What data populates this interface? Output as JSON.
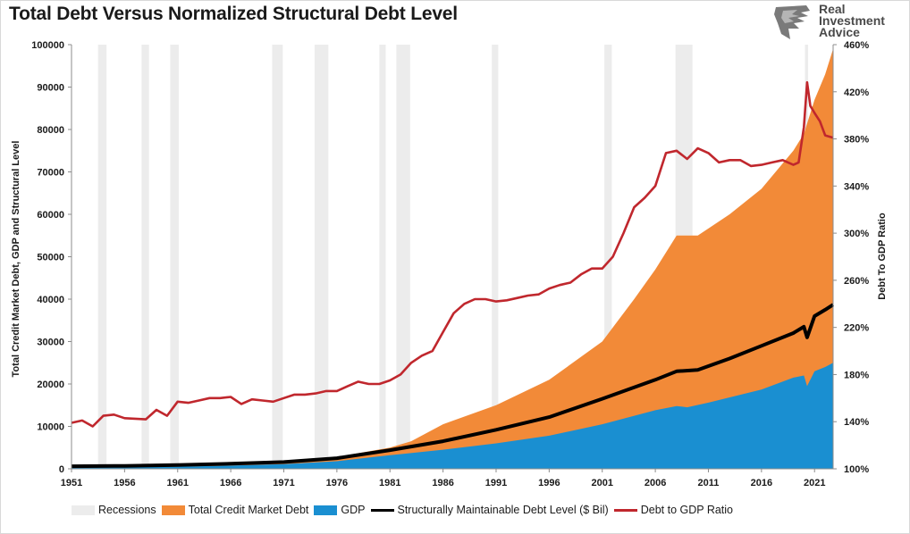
{
  "title": "Total Debt Versus Normalized Structural Debt Level",
  "logo": {
    "line1": "Real",
    "line2": "Investment",
    "line3": "Advice"
  },
  "chart_data": {
    "type": "area",
    "title": "Total Debt Versus Normalized Structural Debt Level",
    "ylabel": "Total Credit Market Debt, GDP and Structural Level",
    "y2label": "Debt To GDP Ratio",
    "xlim": [
      1951,
      2022.75
    ],
    "ylim": [
      0,
      100000
    ],
    "y2lim": [
      100,
      460
    ],
    "x_ticks": [
      "1951",
      "1956",
      "1961",
      "1966",
      "1971",
      "1976",
      "1981",
      "1986",
      "1991",
      "1996",
      "2001",
      "2006",
      "2011",
      "2016",
      "2021"
    ],
    "y_ticks": [
      "0",
      "10000",
      "20000",
      "30000",
      "40000",
      "50000",
      "60000",
      "70000",
      "80000",
      "90000",
      "100000"
    ],
    "y2_ticks": [
      "100%",
      "140%",
      "180%",
      "220%",
      "260%",
      "300%",
      "340%",
      "380%",
      "420%",
      "460%"
    ],
    "recessions": [
      [
        1953.5,
        1954.3
      ],
      [
        1957.6,
        1958.3
      ],
      [
        1960.3,
        1961.1
      ],
      [
        1969.9,
        1970.9
      ],
      [
        1973.9,
        1975.2
      ],
      [
        1980.0,
        1980.6
      ],
      [
        1981.6,
        1982.9
      ],
      [
        1990.6,
        1991.2
      ],
      [
        2001.2,
        2001.9
      ],
      [
        2007.9,
        2009.5
      ],
      [
        2020.1,
        2020.4
      ]
    ],
    "series": [
      {
        "name": "Recessions",
        "color": "#ececec"
      },
      {
        "name": "Total Credit Market Debt",
        "color": "#f28a38",
        "x": [
          1951,
          1956,
          1961,
          1966,
          1971,
          1976,
          1981,
          1983,
          1986,
          1991,
          1996,
          2001,
          2004,
          2006,
          2008,
          2010,
          2013,
          2016,
          2019,
          2020,
          2021,
          2022,
          2022.75
        ],
        "values": [
          400,
          600,
          800,
          1200,
          1700,
          2800,
          5000,
          6500,
          10500,
          15000,
          21000,
          30000,
          40000,
          47000,
          55000,
          55000,
          60000,
          66000,
          75000,
          79000,
          87000,
          93000,
          99000
        ]
      },
      {
        "name": "GDP",
        "color": "#1a8fd1",
        "x": [
          1951,
          1956,
          1961,
          1966,
          1971,
          1976,
          1981,
          1986,
          1991,
          1996,
          2001,
          2006,
          2008,
          2009,
          2011,
          2016,
          2019,
          2020,
          2020.3,
          2021,
          2022,
          2022.75
        ],
        "values": [
          300,
          400,
          500,
          750,
          1100,
          1800,
          3200,
          4500,
          6000,
          7800,
          10500,
          13800,
          14800,
          14500,
          15600,
          18700,
          21500,
          22000,
          19500,
          23000,
          24000,
          25000
        ]
      },
      {
        "name": "Structurally Maintainable Debt Level ($ Bil)",
        "color": "#000000",
        "x": [
          1951,
          1956,
          1961,
          1966,
          1971,
          1976,
          1981,
          1986,
          1991,
          1996,
          2001,
          2006,
          2008,
          2010,
          2013,
          2016,
          2019,
          2020,
          2020.3,
          2021,
          2022,
          2022.75
        ],
        "values": [
          600,
          700,
          900,
          1200,
          1600,
          2500,
          4400,
          6500,
          9200,
          12200,
          16500,
          21000,
          23000,
          23300,
          26000,
          29000,
          32000,
          33500,
          31000,
          36000,
          37500,
          38700
        ]
      },
      {
        "name": "Debt to GDP Ratio",
        "color": "#c0272d",
        "x": [
          1951,
          1952,
          1953,
          1954,
          1955,
          1956,
          1958,
          1959,
          1960,
          1961,
          1962,
          1963,
          1964,
          1965,
          1966,
          1967,
          1968,
          1969,
          1970,
          1971,
          1972,
          1973,
          1974,
          1975,
          1976,
          1977,
          1978,
          1979,
          1980,
          1981,
          1982,
          1983,
          1984,
          1985,
          1986,
          1987,
          1988,
          1989,
          1990,
          1991,
          1992,
          1993,
          1994,
          1995,
          1996,
          1997,
          1998,
          1999,
          2000,
          2001,
          2002,
          2003,
          2004,
          2005,
          2006,
          2007,
          2008,
          2009,
          2010,
          2011,
          2012,
          2013,
          2014,
          2015,
          2016,
          2017,
          2018,
          2019,
          2019.5,
          2020,
          2020.3,
          2020.6,
          2021,
          2021.5,
          2022,
          2022.75
        ],
        "values": [
          139,
          141,
          136,
          145,
          146,
          143,
          142,
          150,
          145,
          157,
          156,
          158,
          160,
          160,
          161,
          155,
          159,
          158,
          157,
          160,
          163,
          163,
          164,
          166,
          166,
          170,
          174,
          172,
          172,
          175,
          180,
          190,
          196,
          200,
          216,
          232,
          240,
          244,
          244,
          242,
          243,
          245,
          247,
          248,
          253,
          256,
          258,
          265,
          270,
          270,
          280,
          300,
          322,
          330,
          340,
          368,
          370,
          363,
          372,
          368,
          360,
          362,
          362,
          357,
          358,
          360,
          362,
          358,
          360,
          390,
          428,
          408,
          402,
          395,
          383,
          381
        ]
      }
    ],
    "legend": "bottom"
  }
}
